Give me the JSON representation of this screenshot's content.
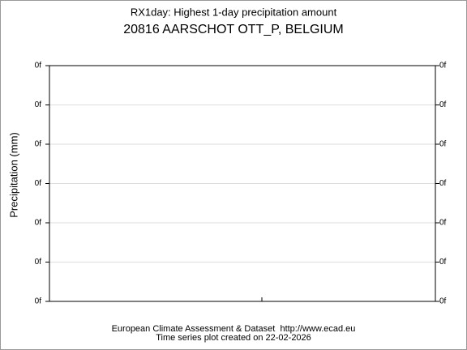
{
  "chart_data": {
    "type": "line",
    "title": "RX1day: Highest 1-day precipitation amount",
    "subtitle": "20816 AARSCHOT OTT_P, BELGIUM",
    "y_label": "Precipitation (mm)",
    "ylim": [
      0,
      6
    ],
    "yticks": [
      {
        "value": 0,
        "label": "0f"
      },
      {
        "value": 1,
        "label": "0f"
      },
      {
        "value": 2,
        "label": "0f"
      },
      {
        "value": 3,
        "label": "0f"
      },
      {
        "value": 4,
        "label": "0f"
      },
      {
        "value": 5,
        "label": "0f"
      },
      {
        "value": 6,
        "label": "0f"
      }
    ],
    "y2lim": [
      0,
      6
    ],
    "y2ticks": [
      {
        "value": 0,
        "label": "0f"
      },
      {
        "value": 1,
        "label": "0f"
      },
      {
        "value": 2,
        "label": "0f"
      },
      {
        "value": 3,
        "label": "0f"
      },
      {
        "value": 4,
        "label": "0f"
      },
      {
        "value": 5,
        "label": "0f"
      },
      {
        "value": 6,
        "label": "0f"
      }
    ],
    "grid": true,
    "footer": [
      "European Climate Assessment & Dataset  http://www.ecad.eu",
      "Time series plot created on 22-02-2026"
    ]
  }
}
